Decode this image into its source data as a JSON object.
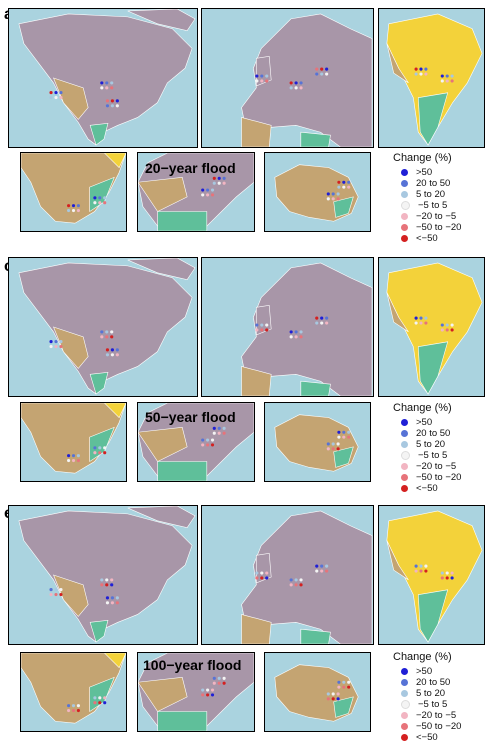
{
  "panels": [
    {
      "letter": "a",
      "flood_title": "20−year flood",
      "legend_title": "Change (%)"
    },
    {
      "letter": "c",
      "flood_title": "50−year flood",
      "legend_title": "Change (%)"
    },
    {
      "letter": "e",
      "flood_title": "100−year flood",
      "legend_title": "Change (%)"
    }
  ],
  "legend_categories": [
    {
      "label": ">50",
      "color": "#1f1fd6"
    },
    {
      "label": "20 to 50",
      "color": "#5773d6"
    },
    {
      "label": "5 to 20",
      "color": "#a8c8e0"
    },
    {
      "label": "−5 to 5",
      "color": "#f4f4f4"
    },
    {
      "label": "−20 to −5",
      "color": "#f2b5c2"
    },
    {
      "label": "−50 to −20",
      "color": "#e7737a"
    },
    {
      "label": "<−50",
      "color": "#d42020"
    }
  ],
  "map_regions": [
    "north-america",
    "europe",
    "south-america",
    "southern-africa",
    "east-asia",
    "australia"
  ],
  "land_colors": {
    "ocean": "#aad3df",
    "land": "#a896a8",
    "arid": "#c4a472",
    "desert": "#f3d23a",
    "tropical": "#5fbf9a"
  }
}
